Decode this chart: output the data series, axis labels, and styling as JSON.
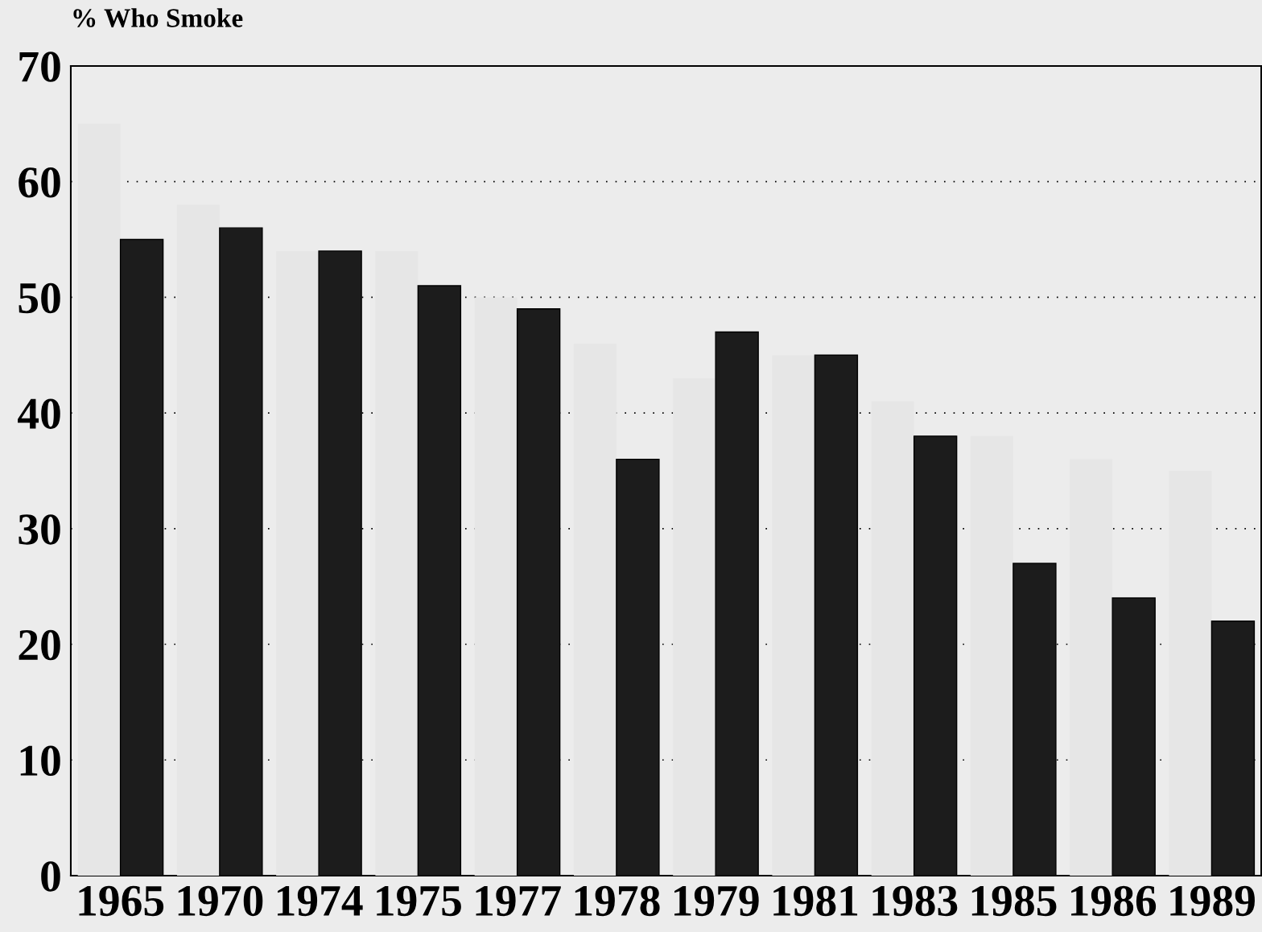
{
  "chart_data": {
    "type": "bar",
    "ylabel": "% Who Smoke",
    "categories": [
      "1965",
      "1970",
      "1974",
      "1975",
      "1977",
      "1978",
      "1979",
      "1981",
      "1983",
      "1985",
      "1986",
      "1989"
    ],
    "series": [
      {
        "color": "#e6e6e6",
        "values": [
          65,
          58,
          54,
          54,
          50,
          46,
          43,
          45,
          41,
          38,
          36,
          35
        ]
      },
      {
        "color": "#1c1c1c",
        "values": [
          55,
          56,
          54,
          51,
          49,
          36,
          47,
          45,
          38,
          27,
          24,
          22
        ]
      }
    ],
    "ylim": [
      0,
      70
    ],
    "yticks": [
      0,
      10,
      20,
      30,
      40,
      50,
      60,
      70
    ],
    "grid": "y",
    "legend": false
  }
}
